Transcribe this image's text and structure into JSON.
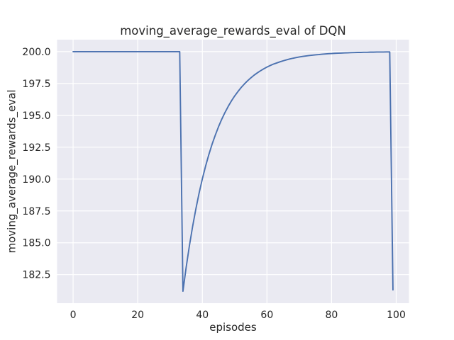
{
  "colors": {
    "figure_background": "#ffffff",
    "axes_background": "#eaeaf2",
    "grid": "#ffffff",
    "line": "#4c72b0",
    "text": "#262626"
  },
  "chart_data": {
    "type": "line",
    "title": "moving_average_rewards_eval of DQN",
    "xlabel": "episodes",
    "ylabel": "moving_average_rewards_eval",
    "legend": "none",
    "grid": true,
    "x_ticks": [
      0,
      20,
      40,
      60,
      80,
      100
    ],
    "y_ticks": [
      182.5,
      185.0,
      187.5,
      190.0,
      192.5,
      195.0,
      197.5,
      200.0
    ],
    "xlim": [
      -4.95,
      103.95
    ],
    "ylim": [
      180.26,
      200.94
    ],
    "series": [
      {
        "name": "moving_average_rewards_eval",
        "x": [
          0,
          1,
          2,
          3,
          4,
          5,
          6,
          7,
          8,
          9,
          10,
          11,
          12,
          13,
          14,
          15,
          16,
          17,
          18,
          19,
          20,
          21,
          22,
          23,
          24,
          25,
          26,
          27,
          28,
          29,
          30,
          31,
          32,
          33,
          34,
          35,
          36,
          37,
          38,
          39,
          40,
          41,
          42,
          43,
          44,
          45,
          46,
          47,
          48,
          49,
          50,
          51,
          52,
          53,
          54,
          55,
          56,
          57,
          58,
          59,
          60,
          61,
          62,
          63,
          64,
          65,
          66,
          67,
          68,
          69,
          70,
          71,
          72,
          73,
          74,
          75,
          76,
          77,
          78,
          79,
          80,
          81,
          82,
          83,
          84,
          85,
          86,
          87,
          88,
          89,
          90,
          91,
          92,
          93,
          94,
          95,
          96,
          97,
          98,
          99
        ],
        "y": [
          200.0,
          200.0,
          200.0,
          200.0,
          200.0,
          200.0,
          200.0,
          200.0,
          200.0,
          200.0,
          200.0,
          200.0,
          200.0,
          200.0,
          200.0,
          200.0,
          200.0,
          200.0,
          200.0,
          200.0,
          200.0,
          200.0,
          200.0,
          200.0,
          200.0,
          200.0,
          200.0,
          200.0,
          200.0,
          200.0,
          200.0,
          200.0,
          200.0,
          200.0,
          181.2,
          183.08,
          184.77,
          186.29,
          187.66,
          188.9,
          190.01,
          191.01,
          191.91,
          192.72,
          193.44,
          194.1,
          194.69,
          195.22,
          195.7,
          196.13,
          196.52,
          196.86,
          197.18,
          197.46,
          197.71,
          197.94,
          198.15,
          198.33,
          198.5,
          198.65,
          198.79,
          198.91,
          199.02,
          199.11,
          199.2,
          199.28,
          199.35,
          199.42,
          199.48,
          199.53,
          199.58,
          199.62,
          199.66,
          199.69,
          199.72,
          199.75,
          199.77,
          199.8,
          199.82,
          199.84,
          199.85,
          199.87,
          199.88,
          199.89,
          199.9,
          199.91,
          199.92,
          199.93,
          199.94,
          199.94,
          199.95,
          199.95,
          199.96,
          199.96,
          199.97,
          199.97,
          199.97,
          199.98,
          199.98,
          181.3
        ]
      }
    ]
  }
}
